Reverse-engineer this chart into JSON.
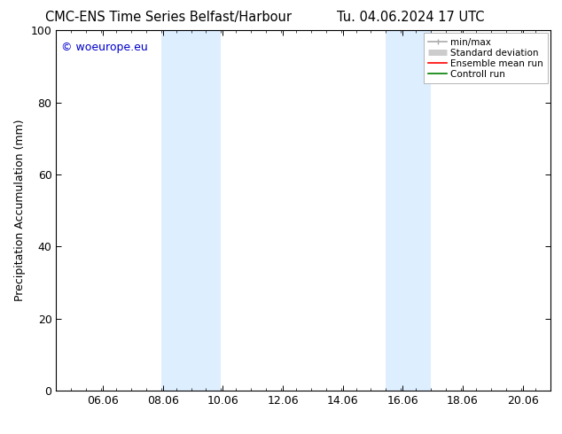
{
  "title_left": "CMC-ENS Time Series Belfast/Harbour",
  "title_right": "Tu. 04.06.2024 17 UTC",
  "ylabel": "Precipitation Accumulation (mm)",
  "ylim": [
    0,
    100
  ],
  "yticks": [
    0,
    20,
    40,
    60,
    80,
    100
  ],
  "xlim": [
    4.5,
    21.0
  ],
  "xticks": [
    6.06,
    8.06,
    10.06,
    12.06,
    14.06,
    16.06,
    18.06,
    20.06
  ],
  "xticklabels": [
    "06.06",
    "08.06",
    "10.06",
    "12.06",
    "14.06",
    "16.06",
    "18.06",
    "20.06"
  ],
  "shaded_bands": [
    {
      "x_start": 8.0,
      "x_end": 10.0
    },
    {
      "x_start": 15.5,
      "x_end": 17.0
    }
  ],
  "shaded_color": "#ddeeff",
  "watermark_text": "© woeurope.eu",
  "watermark_color": "#0000cc",
  "legend_items": [
    {
      "label": "min/max",
      "color": "#aaaaaa",
      "lw": 1.2
    },
    {
      "label": "Standard deviation",
      "color": "#cccccc",
      "lw": 5
    },
    {
      "label": "Ensemble mean run",
      "color": "#ff0000",
      "lw": 1.2
    },
    {
      "label": "Controll run",
      "color": "#008000",
      "lw": 1.2
    }
  ],
  "background_color": "#ffffff",
  "font_size": 9,
  "title_font_size": 10.5,
  "minor_xtick_step": 0.5
}
